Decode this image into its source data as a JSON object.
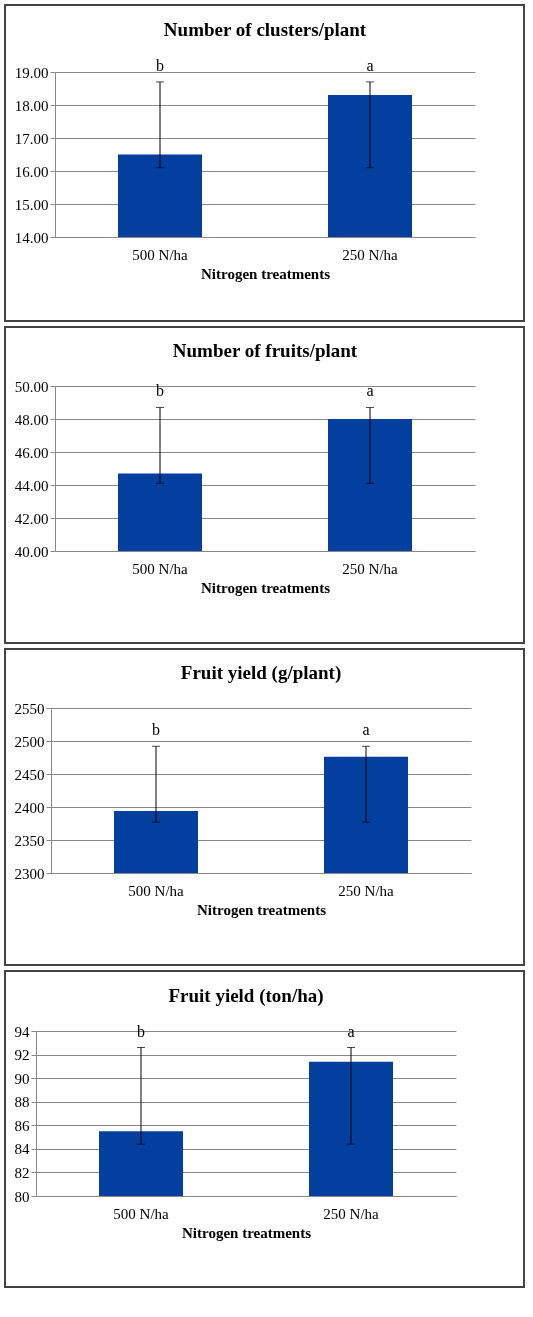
{
  "chart_data": [
    {
      "type": "bar",
      "title": "Number of clusters/plant",
      "xlabel": "Nitrogen treatments",
      "categories": [
        "500 N/ha",
        "250 N/ha"
      ],
      "values": [
        16.5,
        18.3
      ],
      "errors": [
        [
          16.1,
          18.7
        ],
        [
          16.1,
          18.7
        ]
      ],
      "color": "#023f9f",
      "ylim": [
        14,
        19
      ],
      "yticks": [
        {
          "value": 14,
          "label": "14.00"
        },
        {
          "value": 15,
          "label": "15.00"
        },
        {
          "value": 16,
          "label": "16.00"
        },
        {
          "value": 17,
          "label": "17.00"
        },
        {
          "value": 18,
          "label": "18.00"
        },
        {
          "value": 19,
          "label": "19.00"
        }
      ],
      "grid": true,
      "annotations": [
        {
          "text": "b",
          "x": "500 N/ha",
          "y": 18.7
        },
        {
          "text": "a",
          "x": "250 N/ha",
          "y": 18.7
        }
      ]
    },
    {
      "type": "bar",
      "title": "Number of fruits/plant",
      "xlabel": "Nitrogen treatments",
      "categories": [
        "500 N/ha",
        "250 N/ha"
      ],
      "values": [
        44.7,
        48.0
      ],
      "errors": [
        [
          44.1,
          48.7
        ],
        [
          44.1,
          48.7
        ]
      ],
      "color": "#023f9f",
      "ylim": [
        40,
        50
      ],
      "yticks": [
        {
          "value": 40,
          "label": "40.00"
        },
        {
          "value": 42,
          "label": "42.00"
        },
        {
          "value": 44,
          "label": "44.00"
        },
        {
          "value": 46,
          "label": "46.00"
        },
        {
          "value": 48,
          "label": "48.00"
        },
        {
          "value": 50,
          "label": "50.00"
        }
      ],
      "grid": true,
      "annotations": [
        {
          "text": "b",
          "x": "500 N/ha",
          "y": 48.7
        },
        {
          "text": "a",
          "x": "250 N/ha",
          "y": 48.7
        }
      ]
    },
    {
      "type": "bar",
      "title": "Fruit yield (g/plant)",
      "xlabel": "Nitrogen treatments",
      "categories": [
        "500 N/ha",
        "250 N/ha"
      ],
      "values": [
        2394,
        2476
      ],
      "errors": [
        [
          2377,
          2492
        ],
        [
          2377,
          2492
        ]
      ],
      "color": "#023f9f",
      "ylim": [
        2300,
        2550
      ],
      "yticks": [
        2300,
        2350,
        2400,
        2450,
        2500,
        2550
      ],
      "grid": true,
      "annotations": [
        {
          "text": "b",
          "x": "500 N/ha",
          "y": 2492
        },
        {
          "text": "a",
          "x": "250 N/ha",
          "y": 2492
        }
      ]
    },
    {
      "type": "bar",
      "title": "Fruit yield (ton/ha)",
      "xlabel": "Nitrogen treatments",
      "categories": [
        "500 N/ha",
        "250 N/ha"
      ],
      "values": [
        85.5,
        91.4
      ],
      "errors": [
        [
          84.4,
          92.6
        ],
        [
          84.4,
          92.6
        ]
      ],
      "color": "#023f9f",
      "ylim": [
        80,
        94
      ],
      "yticks": [
        80,
        82,
        84,
        86,
        88,
        90,
        92,
        94
      ],
      "grid": true,
      "annotations": [
        {
          "text": "b",
          "x": "500 N/ha",
          "y": 92.6
        },
        {
          "text": "a",
          "x": "250 N/ha",
          "y": 92.6
        }
      ]
    }
  ]
}
